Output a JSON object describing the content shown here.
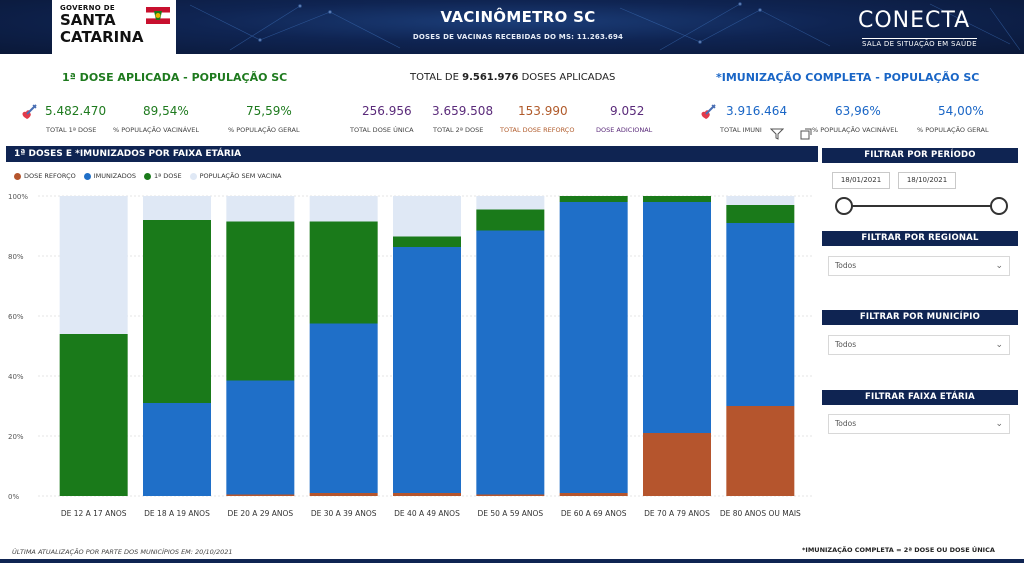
{
  "header": {
    "logo_top": "GOVERNO DE",
    "logo_line1": "SANTA",
    "logo_line2": "CATARINA",
    "title": "VACINÔMETRO SC",
    "subtitle": "DOSES DE VACINAS RECEBIDAS DO MS: 11.263.694",
    "brand": "CONECTA",
    "brand_sub": "SALA DE SITUAÇÃO EM SAÚDE"
  },
  "kpis": {
    "first_dose": {
      "title": "1ª DOSE APLICADA - POPULAÇÃO SC",
      "total": "5.482.470",
      "total_label": "TOTAL 1ª DOSE",
      "pct_vac": "89,54%",
      "pct_vac_label": "% POPULAÇÃO VACINÁVEL",
      "pct_geral": "75,59%",
      "pct_geral_label": "% POPULAÇÃO GERAL"
    },
    "middle": {
      "total_prefix": "TOTAL DE",
      "total_value": "9.561.976",
      "total_suffix": "DOSES APLICADAS",
      "unica": "256.956",
      "unica_label": "TOTAL DOSE ÚNICA",
      "segunda": "3.659.508",
      "segunda_label": "TOTAL 2ª DOSE",
      "reforco": "153.990",
      "reforco_label": "TOTAL DOSE REFORÇO",
      "adicional": "9.052",
      "adicional_label": "DOSE ADICIONAL"
    },
    "complete": {
      "title": "*IMUNIZAÇÃO COMPLETA - POPULAÇÃO SC",
      "total": "3.916.464",
      "total_label": "TOTAL IMUNI",
      "pct_vac": "63,96%",
      "pct_vac_label": "% POPULAÇÃO VACINÁVEL",
      "pct_geral": "54,00%",
      "pct_geral_label": "% POPULAÇÃO GERAL"
    }
  },
  "panel_title": "1ª DOSES E *IMUNIZADOS POR FAIXA ETÁRIA",
  "colors": {
    "reforco": "#b5552d",
    "imunizados": "#1f6fc8",
    "primeira": "#1a7a1a",
    "sem_vacina": "#dfe8f5",
    "navy": "#0f2452"
  },
  "chart_data": {
    "type": "bar",
    "stacked": true,
    "title": "1ª DOSES E *IMUNIZADOS POR FAIXA ETÁRIA",
    "categories": [
      "DE 12 A 17 ANOS",
      "DE 18 A 19 ANOS",
      "DE 20 A 29 ANOS",
      "DE 30 A 39 ANOS",
      "DE 40 A 49 ANOS",
      "DE 50 A 59 ANOS",
      "DE 60 A 69 ANOS",
      "DE 70 A 79 ANOS",
      "DE 80 ANOS OU MAIS"
    ],
    "series": [
      {
        "name": "DOSE REFORÇO",
        "values": [
          0,
          0,
          0.5,
          1,
          1,
          0.5,
          1,
          21,
          30
        ]
      },
      {
        "name": "IMUNIZADOS",
        "values": [
          0,
          31,
          38,
          56.5,
          82,
          88,
          97,
          77,
          61
        ]
      },
      {
        "name": "1ª DOSE",
        "values": [
          54,
          61,
          53,
          34,
          3.5,
          7,
          2,
          2,
          6
        ]
      },
      {
        "name": "POPULAÇÃO SEM VACINA",
        "values": [
          46,
          8,
          8.5,
          8.5,
          13.5,
          4.5,
          0,
          0,
          3
        ]
      }
    ],
    "ytick_labels": [
      "0%",
      "20%",
      "40%",
      "60%",
      "80%",
      "100%"
    ],
    "ylim": [
      0,
      100
    ],
    "xlabel": "",
    "ylabel": ""
  },
  "filters": {
    "periodo_title": "FILTRAR POR PERÍODO",
    "date_start": "18/01/2021",
    "date_end": "18/10/2021",
    "regional_title": "FILTRAR POR REGIONAL",
    "regional_value": "Todos",
    "municipio_title": "FILTRAR POR MUNICÍPIO",
    "municipio_value": "Todos",
    "faixa_title": "FILTRAR FAIXA ETÁRIA",
    "faixa_value": "Todos"
  },
  "footer": {
    "update": "ÚLTIMA ATUALIZAÇÃO POR PARTE DOS MUNICÍPIOS EM: 20/10/2021",
    "note": "*IMUNIZAÇÃO COMPLETA = 2ª DOSE OU DOSE ÚNICA"
  }
}
